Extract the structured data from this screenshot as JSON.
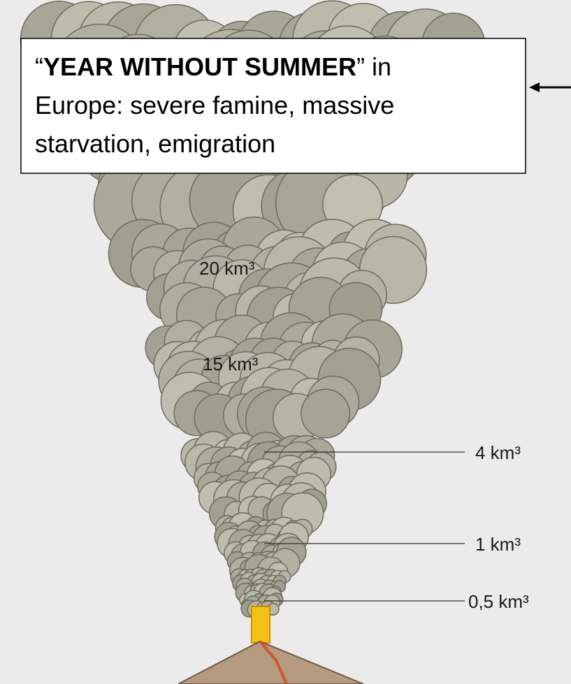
{
  "callout": {
    "quote_open": "“",
    "emphasis": "YEAR WITHOUT SUMMER",
    "rest_line1": "” in",
    "line2": "Europe: severe famine, massive",
    "line3": "starvation, emigration"
  },
  "volumes": [
    {
      "label": "20 km³"
    },
    {
      "label": "15 km³"
    },
    {
      "label": "4 km³"
    },
    {
      "label": "1 km³"
    },
    {
      "label": "0,5 km³"
    }
  ]
}
